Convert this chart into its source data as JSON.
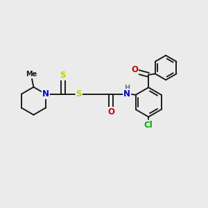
{
  "bg_color": "#ebebeb",
  "bond_color": "#1a1a1a",
  "atom_colors": {
    "N": "#0000cc",
    "O": "#cc0000",
    "S": "#cccc00",
    "Cl": "#00aa00",
    "C": "#1a1a1a"
  },
  "font_size": 8.5,
  "line_width": 1.4
}
